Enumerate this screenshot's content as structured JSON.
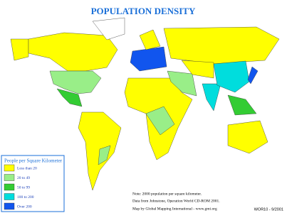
{
  "title": "POPULATION DENSITY",
  "legend": {
    "title": "People per Square Kilometer",
    "items": [
      {
        "label": "Less than 20",
        "color": "#ffff00"
      },
      {
        "label": "20 to 49",
        "color": "#99ee88"
      },
      {
        "label": "50 to 99",
        "color": "#33cc33"
      },
      {
        "label": "100 to 200",
        "color": "#00dddd"
      },
      {
        "label": "Over 200",
        "color": "#1155ee"
      }
    ]
  },
  "notes": [
    "Note: 2000 population per square kilometer.",
    "Data from Johnstone, Operation World CD-ROM 2001.",
    "Map by Global Mapping International - www.gmi.org"
  ],
  "code": "WOR10 - 9/2001"
}
